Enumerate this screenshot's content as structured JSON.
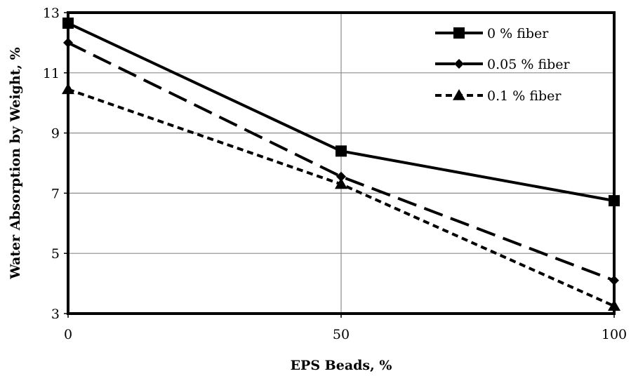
{
  "chart_data": {
    "type": "line",
    "title": "",
    "xlabel": "EPS Beads, %",
    "ylabel": "Water Absorption by Weight, %",
    "x": [
      0,
      50,
      100
    ],
    "x_ticks": [
      "0",
      "50",
      "100"
    ],
    "y_ticks": [
      "3",
      "5",
      "7",
      "9",
      "11",
      "13"
    ],
    "xlim": [
      0,
      100
    ],
    "ylim": [
      3,
      13
    ],
    "grid": true,
    "legend_position": "top-right",
    "series": [
      {
        "name": "0 % fiber",
        "values": [
          12.65,
          8.4,
          6.75
        ],
        "marker": "square",
        "dash": "solid"
      },
      {
        "name": "0.05 % fiber",
        "values": [
          12.0,
          7.55,
          4.1
        ],
        "marker": "diamond",
        "dash": "long-dash"
      },
      {
        "name": "0.1 % fiber",
        "values": [
          10.45,
          7.3,
          3.25
        ],
        "marker": "triangle",
        "dash": "short-dash"
      }
    ]
  }
}
